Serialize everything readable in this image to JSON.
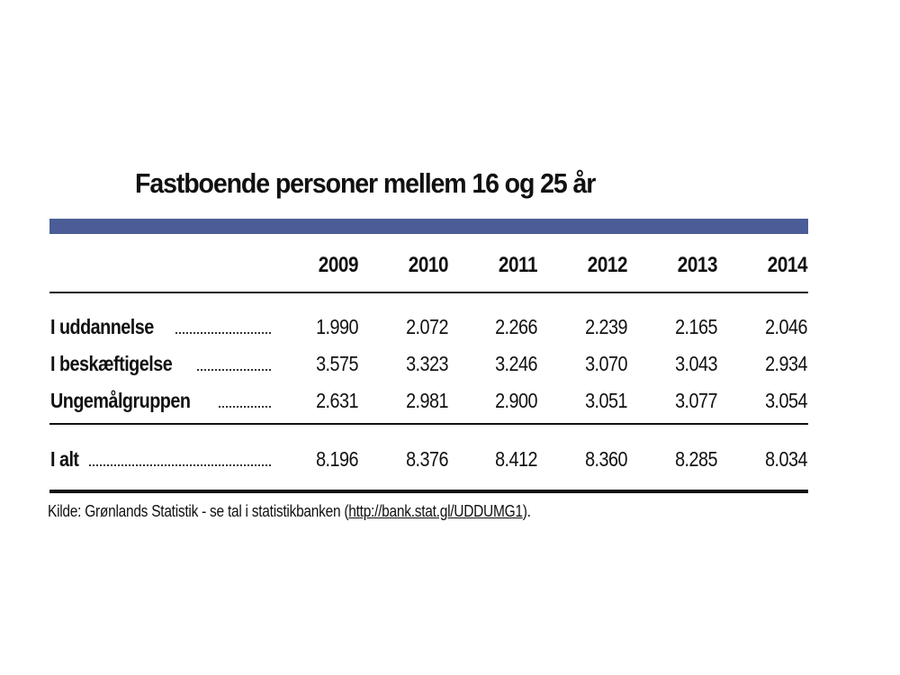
{
  "chart_data": {
    "type": "table",
    "title": "Fastboende personer mellem 16 og 25 år",
    "columns": [
      "2009",
      "2010",
      "2011",
      "2012",
      "2013",
      "2014"
    ],
    "rows": [
      {
        "label": "I uddannelse",
        "values": [
          "1.990",
          "2.072",
          "2.266",
          "2.239",
          "2.165",
          "2.046"
        ]
      },
      {
        "label": "I beskæftigelse",
        "values": [
          "3.575",
          "3.323",
          "3.246",
          "3.070",
          "3.043",
          "2.934"
        ]
      },
      {
        "label": "Ungemålgruppen",
        "values": [
          "2.631",
          "2.981",
          "2.900",
          "3.051",
          "3.077",
          "3.054"
        ]
      }
    ],
    "total": {
      "label": "I alt",
      "values": [
        "8.196",
        "8.376",
        "8.412",
        "8.360",
        "8.285",
        "8.034"
      ]
    }
  },
  "source": {
    "prefix": "Kilde: Grønlands Statistik - se tal i statistikbanken (",
    "link": "http://bank.stat.gl/UDDUMG1",
    "suffix": ")."
  },
  "colors": {
    "header_bar": "#4a5d96",
    "text": "#111111"
  }
}
